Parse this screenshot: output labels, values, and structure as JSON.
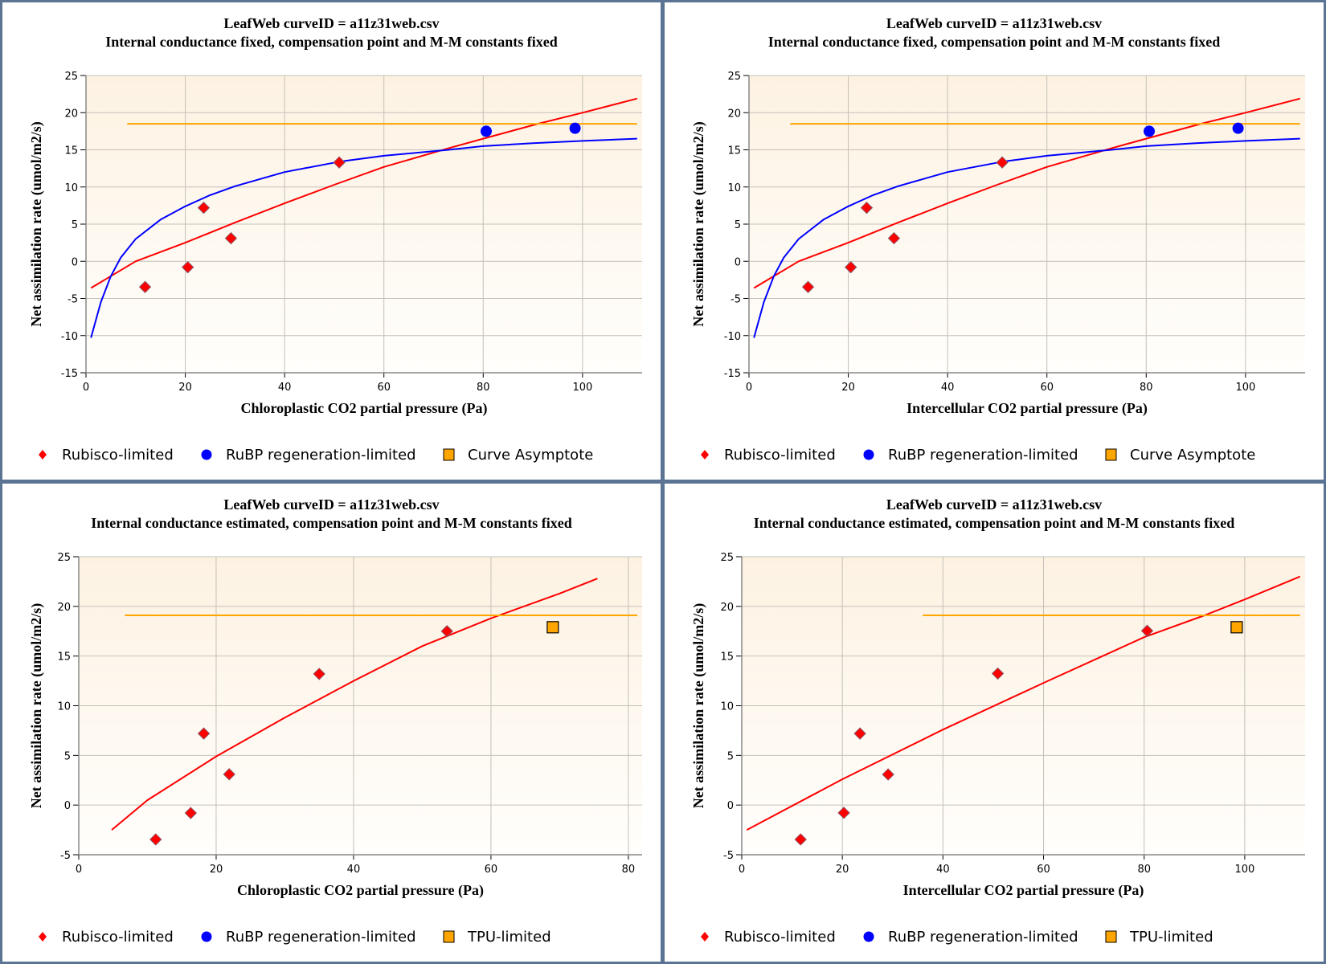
{
  "colors": {
    "rubisco": "#ff0000",
    "rubp": "#0000ff",
    "asymptote": "#ffa500",
    "border": "#5b7494",
    "plot_bg_top": "#fdf2e2",
    "plot_bg_bottom": "#fffefc"
  },
  "chart_data": [
    {
      "type": "scatter",
      "title": "LeafWeb curveID = a11z31web.csv",
      "subtitle": "Internal conductance fixed, compensation point and M-M constants fixed",
      "xlabel": "Chloroplastic CO2 partial pressure (Pa)",
      "ylabel": "Net assimilation rate (umol/m2/s)",
      "xlim": [
        0,
        112
      ],
      "ylim": [
        -15,
        25
      ],
      "xticks": [
        0,
        20,
        40,
        60,
        80,
        100
      ],
      "yticks": [
        -15,
        -10,
        -5,
        0,
        5,
        10,
        15,
        20,
        25
      ],
      "grid": true,
      "legend_position": "bottom",
      "legend": [
        {
          "label": "Rubisco-limited",
          "marker": "diamond",
          "color_key": "rubisco"
        },
        {
          "label": "RuBP regeneration-limited",
          "marker": "circle",
          "color_key": "rubp"
        },
        {
          "label": "Curve Asymptote",
          "marker": "square",
          "color_key": "asymptote"
        }
      ],
      "points": [
        {
          "series": "Rubisco-limited",
          "marker": "diamond",
          "x": 11.9,
          "y": -3.46
        },
        {
          "series": "Rubisco-limited",
          "marker": "diamond",
          "x": 20.5,
          "y": -0.8
        },
        {
          "series": "Rubisco-limited",
          "marker": "diamond",
          "x": 23.7,
          "y": 7.2
        },
        {
          "series": "Rubisco-limited",
          "marker": "diamond",
          "x": 29.2,
          "y": 3.1
        },
        {
          "series": "Rubisco-limited",
          "marker": "diamond",
          "x": 51.0,
          "y": 13.3
        },
        {
          "series": "RuBP regeneration-limited",
          "marker": "circle",
          "x": 80.6,
          "y": 17.5
        },
        {
          "series": "RuBP regeneration-limited",
          "marker": "circle",
          "x": 98.5,
          "y": 17.9
        }
      ],
      "lines": [
        {
          "name": "rubisco-fit",
          "color_key": "rubisco",
          "x": [
            1,
            10,
            20,
            30,
            40,
            50,
            60,
            73,
            80,
            91,
            100,
            111
          ],
          "y": [
            -3.6,
            0.0,
            2.5,
            5.2,
            7.8,
            10.3,
            12.7,
            15.2,
            16.5,
            18.5,
            20.0,
            21.9
          ]
        },
        {
          "name": "rubp-fit",
          "color_key": "rubp",
          "x": [
            1,
            3,
            5,
            7,
            10,
            15,
            20,
            25,
            30,
            40,
            51,
            60,
            73,
            80,
            90,
            100,
            111
          ],
          "y": [
            -10.3,
            -5.5,
            -2.0,
            0.5,
            3.0,
            5.6,
            7.4,
            8.9,
            10.1,
            12.0,
            13.4,
            14.2,
            15.0,
            15.5,
            15.9,
            16.2,
            16.5
          ]
        },
        {
          "name": "asymptote",
          "color_key": "asymptote",
          "x": [
            8.3,
            111
          ],
          "y": [
            18.5,
            18.5
          ]
        }
      ]
    },
    {
      "type": "scatter",
      "title": "LeafWeb curveID = a11z31web.csv",
      "subtitle": "Internal conductance fixed, compensation point and M-M constants fixed",
      "xlabel": "Intercellular CO2 partial pressure (Pa)",
      "ylabel": "Net assimilation rate (umol/m2/s)",
      "xlim": [
        0,
        112
      ],
      "ylim": [
        -15,
        25
      ],
      "xticks": [
        0,
        20,
        40,
        60,
        80,
        100
      ],
      "yticks": [
        -15,
        -10,
        -5,
        0,
        5,
        10,
        15,
        20,
        25
      ],
      "grid": true,
      "legend_position": "bottom",
      "legend": [
        {
          "label": "Rubisco-limited",
          "marker": "diamond",
          "color_key": "rubisco"
        },
        {
          "label": "RuBP regeneration-limited",
          "marker": "circle",
          "color_key": "rubp"
        },
        {
          "label": "Curve Asymptote",
          "marker": "square",
          "color_key": "asymptote"
        }
      ],
      "points": [
        {
          "series": "Rubisco-limited",
          "marker": "diamond",
          "x": 11.9,
          "y": -3.46
        },
        {
          "series": "Rubisco-limited",
          "marker": "diamond",
          "x": 20.5,
          "y": -0.8
        },
        {
          "series": "Rubisco-limited",
          "marker": "diamond",
          "x": 23.7,
          "y": 7.2
        },
        {
          "series": "Rubisco-limited",
          "marker": "diamond",
          "x": 29.2,
          "y": 3.1
        },
        {
          "series": "Rubisco-limited",
          "marker": "diamond",
          "x": 51.0,
          "y": 13.3
        },
        {
          "series": "RuBP regeneration-limited",
          "marker": "circle",
          "x": 80.6,
          "y": 17.5
        },
        {
          "series": "RuBP regeneration-limited",
          "marker": "circle",
          "x": 98.5,
          "y": 17.9
        }
      ],
      "lines": [
        {
          "name": "rubisco-fit",
          "color_key": "rubisco",
          "x": [
            1,
            10,
            20,
            30,
            40,
            50,
            60,
            73,
            80,
            91,
            100,
            111
          ],
          "y": [
            -3.6,
            0.0,
            2.5,
            5.2,
            7.8,
            10.3,
            12.7,
            15.2,
            16.5,
            18.5,
            20.0,
            21.9
          ]
        },
        {
          "name": "rubp-fit",
          "color_key": "rubp",
          "x": [
            1,
            3,
            5,
            7,
            10,
            15,
            20,
            25,
            30,
            40,
            51,
            60,
            73,
            80,
            90,
            100,
            111
          ],
          "y": [
            -10.3,
            -5.5,
            -2.0,
            0.5,
            3.0,
            5.6,
            7.4,
            8.9,
            10.1,
            12.0,
            13.4,
            14.2,
            15.0,
            15.5,
            15.9,
            16.2,
            16.5
          ]
        },
        {
          "name": "asymptote",
          "color_key": "asymptote",
          "x": [
            8.3,
            111
          ],
          "y": [
            18.5,
            18.5
          ]
        }
      ]
    },
    {
      "type": "scatter",
      "title": "LeafWeb curveID = a11z31web.csv",
      "subtitle": "Internal conductance estimated, compensation point and M-M constants fixed",
      "xlabel": "Chloroplastic CO2 partial pressure (Pa)",
      "ylabel": "Net assimilation rate (umol/m2/s)",
      "xlim": [
        0,
        82
      ],
      "ylim": [
        -5,
        25
      ],
      "xticks": [
        0,
        20,
        40,
        60,
        80
      ],
      "yticks": [
        -5,
        0,
        5,
        10,
        15,
        20,
        25
      ],
      "grid": true,
      "legend_position": "bottom",
      "legend": [
        {
          "label": "Rubisco-limited",
          "marker": "diamond",
          "color_key": "rubisco"
        },
        {
          "label": "RuBP regeneration-limited",
          "marker": "circle",
          "color_key": "rubp"
        },
        {
          "label": "TPU-limited",
          "marker": "square",
          "color_key": "asymptote"
        }
      ],
      "points": [
        {
          "series": "Rubisco-limited",
          "marker": "diamond",
          "x": 11.2,
          "y": -3.46
        },
        {
          "series": "Rubisco-limited",
          "marker": "diamond",
          "x": 16.3,
          "y": -0.8
        },
        {
          "series": "Rubisco-limited",
          "marker": "diamond",
          "x": 18.2,
          "y": 7.2
        },
        {
          "series": "Rubisco-limited",
          "marker": "diamond",
          "x": 21.9,
          "y": 3.1
        },
        {
          "series": "Rubisco-limited",
          "marker": "diamond",
          "x": 35.0,
          "y": 13.2
        },
        {
          "series": "Rubisco-limited",
          "marker": "diamond",
          "x": 53.6,
          "y": 17.5
        },
        {
          "series": "TPU-limited",
          "marker": "square",
          "x": 69.0,
          "y": 17.9
        }
      ],
      "lines": [
        {
          "name": "rubisco-fit",
          "color_key": "rubisco",
          "x": [
            4.8,
            10,
            20,
            30,
            40,
            50,
            60,
            70,
            75.5
          ],
          "y": [
            -2.5,
            0.5,
            4.9,
            8.8,
            12.5,
            16.0,
            18.8,
            21.3,
            22.8
          ]
        },
        {
          "name": "tpu-asymptote",
          "color_key": "asymptote",
          "x": [
            6.7,
            81.3
          ],
          "y": [
            19.1,
            19.1
          ]
        }
      ]
    },
    {
      "type": "scatter",
      "title": "LeafWeb curveID = a11z31web.csv",
      "subtitle": "Internal conductance estimated, compensation point and M-M constants fixed",
      "xlabel": "Intercellular CO2 partial pressure (Pa)",
      "ylabel": "Net assimilation rate (umol/m2/s)",
      "xlim": [
        0,
        112
      ],
      "ylim": [
        -5,
        25
      ],
      "xticks": [
        0,
        20,
        40,
        60,
        80,
        100
      ],
      "yticks": [
        -5,
        0,
        5,
        10,
        15,
        20,
        25
      ],
      "grid": true,
      "legend_position": "bottom",
      "legend": [
        {
          "label": "Rubisco-limited",
          "marker": "diamond",
          "color_key": "rubisco"
        },
        {
          "label": "RuBP regeneration-limited",
          "marker": "circle",
          "color_key": "rubp"
        },
        {
          "label": "TPU-limited",
          "marker": "square",
          "color_key": "asymptote"
        }
      ],
      "points": [
        {
          "series": "Rubisco-limited",
          "marker": "diamond",
          "x": 11.7,
          "y": -3.46
        },
        {
          "series": "Rubisco-limited",
          "marker": "diamond",
          "x": 20.3,
          "y": -0.78
        },
        {
          "series": "Rubisco-limited",
          "marker": "diamond",
          "x": 23.5,
          "y": 7.2
        },
        {
          "series": "Rubisco-limited",
          "marker": "diamond",
          "x": 29.1,
          "y": 3.08
        },
        {
          "series": "Rubisco-limited",
          "marker": "diamond",
          "x": 50.9,
          "y": 13.24
        },
        {
          "series": "Rubisco-limited",
          "marker": "diamond",
          "x": 80.6,
          "y": 17.54
        },
        {
          "series": "TPU-limited",
          "marker": "square",
          "x": 98.4,
          "y": 17.9
        }
      ],
      "lines": [
        {
          "name": "rubisco-fit",
          "color_key": "rubisco",
          "x": [
            1,
            20,
            40,
            60,
            80,
            92,
            100,
            111
          ],
          "y": [
            -2.5,
            2.6,
            7.6,
            12.3,
            16.9,
            19.1,
            20.7,
            23.0
          ]
        },
        {
          "name": "tpu-asymptote",
          "color_key": "asymptote",
          "x": [
            36,
            111
          ],
          "y": [
            19.1,
            19.1
          ]
        }
      ]
    }
  ]
}
